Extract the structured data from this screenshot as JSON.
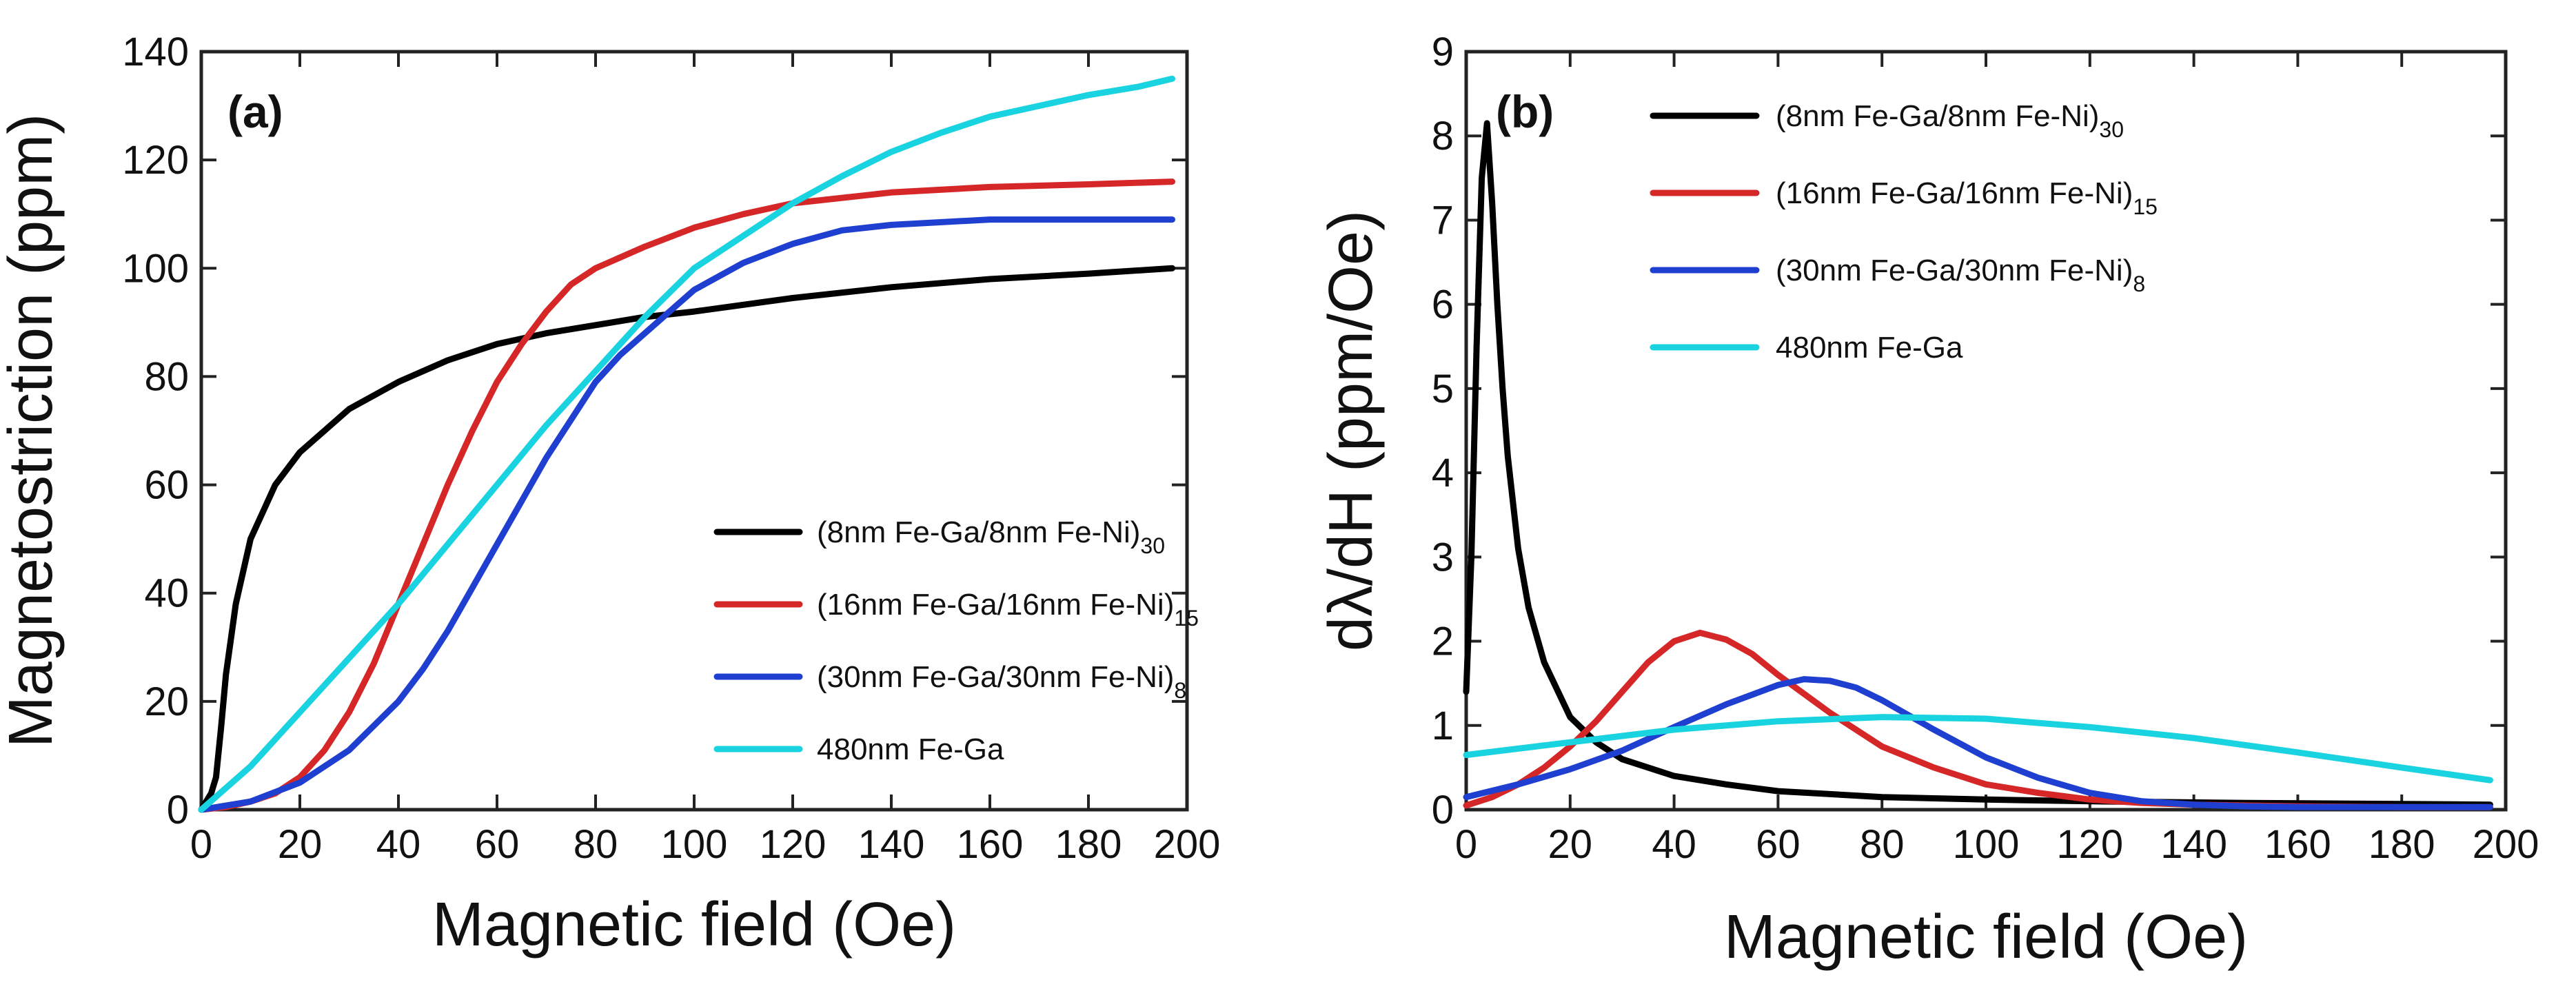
{
  "chart_data": [
    {
      "type": "line",
      "panel_label": "(a)",
      "xlabel": "Magnetic field (Oe)",
      "ylabel": "Magnetostriction (ppm)",
      "xlim": [
        0,
        200
      ],
      "ylim": [
        0,
        140
      ],
      "xticks": [
        "0",
        "20",
        "40",
        "60",
        "80",
        "100",
        "120",
        "140",
        "160",
        "180",
        "200"
      ],
      "yticks": [
        "0",
        "20",
        "40",
        "60",
        "80",
        "100",
        "120",
        "140"
      ],
      "grid": false,
      "legend_position": "lower-right",
      "series": [
        {
          "name": "(8nm Fe-Ga/8nm Fe-Ni)",
          "subscript": "30",
          "color": "#000000",
          "x": [
            0,
            1,
            2,
            3,
            4,
            5,
            7,
            10,
            15,
            20,
            30,
            40,
            50,
            60,
            70,
            80,
            90,
            100,
            120,
            140,
            160,
            180,
            197
          ],
          "y": [
            0,
            1.5,
            3,
            6,
            15,
            25,
            38,
            50,
            60,
            66,
            74,
            79,
            83,
            86,
            88,
            89.5,
            91,
            92,
            94.5,
            96.5,
            98,
            99,
            100
          ]
        },
        {
          "name": "(16nm Fe-Ga/16nm Fe-Ni)",
          "subscript": "15",
          "color": "#d62728",
          "x": [
            0,
            5,
            10,
            15,
            20,
            25,
            30,
            35,
            40,
            45,
            50,
            55,
            60,
            65,
            70,
            75,
            80,
            90,
            100,
            110,
            120,
            140,
            160,
            180,
            197
          ],
          "y": [
            0,
            0.5,
            1.5,
            3,
            6,
            11,
            18,
            27,
            38,
            49,
            60,
            70,
            79,
            86,
            92,
            97,
            100,
            104,
            107.5,
            110,
            112,
            114,
            115,
            115.5,
            116
          ]
        },
        {
          "name": "(30nm Fe-Ga/30nm Fe-Ni)",
          "subscript": "8",
          "color": "#1f3fd0",
          "x": [
            0,
            10,
            20,
            30,
            40,
            45,
            50,
            55,
            60,
            65,
            70,
            75,
            80,
            85,
            90,
            95,
            100,
            110,
            120,
            130,
            140,
            160,
            180,
            197
          ],
          "y": [
            0,
            1.5,
            5,
            11,
            20,
            26,
            33,
            41,
            49,
            57,
            65,
            72,
            79,
            84,
            88,
            92,
            96,
            101,
            104.5,
            107,
            108,
            109,
            109,
            109
          ]
        },
        {
          "name": "480nm Fe-Ga",
          "subscript": "",
          "color": "#19d3e0",
          "x": [
            0,
            10,
            20,
            30,
            40,
            50,
            60,
            70,
            80,
            90,
            100,
            110,
            120,
            130,
            140,
            150,
            160,
            170,
            180,
            190,
            197
          ],
          "y": [
            0,
            8,
            18,
            28,
            38,
            49,
            60,
            71,
            81,
            91,
            100,
            106,
            112,
            117,
            121.5,
            125,
            128,
            130,
            132,
            133.5,
            135
          ]
        }
      ]
    },
    {
      "type": "line",
      "panel_label": "(b)",
      "xlabel": "Magnetic field (Oe)",
      "ylabel": "dλ/dH (ppm/Oe)",
      "xlim": [
        0,
        200
      ],
      "ylim": [
        0,
        9
      ],
      "xticks": [
        "0",
        "20",
        "40",
        "60",
        "80",
        "100",
        "120",
        "140",
        "160",
        "180",
        "200"
      ],
      "yticks": [
        "0",
        "1",
        "2",
        "3",
        "4",
        "5",
        "6",
        "7",
        "8",
        "9"
      ],
      "grid": false,
      "legend_position": "upper-left",
      "series": [
        {
          "name": "(8nm Fe-Ga/8nm Fe-Ni)",
          "subscript": "30",
          "color": "#000000",
          "x": [
            0,
            1,
            2,
            3,
            4,
            5,
            6,
            7,
            8,
            10,
            12,
            15,
            20,
            25,
            30,
            40,
            50,
            60,
            80,
            100,
            120,
            150,
            197
          ],
          "y": [
            1.4,
            3,
            5.5,
            7.5,
            8.15,
            7.2,
            6,
            5,
            4.2,
            3.1,
            2.4,
            1.75,
            1.1,
            0.8,
            0.6,
            0.4,
            0.3,
            0.22,
            0.15,
            0.12,
            0.1,
            0.08,
            0.06
          ]
        },
        {
          "name": "(16nm Fe-Ga/16nm Fe-Ni)",
          "subscript": "15",
          "color": "#d62728",
          "x": [
            0,
            5,
            10,
            15,
            20,
            25,
            30,
            35,
            40,
            45,
            50,
            55,
            60,
            70,
            80,
            90,
            100,
            110,
            120,
            130,
            140,
            160,
            180,
            197
          ],
          "y": [
            0.05,
            0.15,
            0.3,
            0.5,
            0.75,
            1.05,
            1.4,
            1.75,
            2.0,
            2.1,
            2.02,
            1.85,
            1.6,
            1.15,
            0.75,
            0.5,
            0.3,
            0.2,
            0.12,
            0.08,
            0.06,
            0.04,
            0.03,
            0.03
          ]
        },
        {
          "name": "(30nm Fe-Ga/30nm Fe-Ni)",
          "subscript": "8",
          "color": "#1f3fd0",
          "x": [
            0,
            10,
            20,
            30,
            40,
            50,
            60,
            65,
            70,
            75,
            80,
            90,
            100,
            110,
            120,
            130,
            140,
            150,
            160,
            180,
            197
          ],
          "y": [
            0.15,
            0.3,
            0.48,
            0.7,
            0.98,
            1.25,
            1.48,
            1.55,
            1.53,
            1.45,
            1.3,
            0.95,
            0.62,
            0.38,
            0.2,
            0.1,
            0.06,
            0.04,
            0.03,
            0.03,
            0.03
          ]
        },
        {
          "name": "480nm Fe-Ga",
          "subscript": "",
          "color": "#19d3e0",
          "x": [
            0,
            20,
            40,
            60,
            80,
            100,
            120,
            140,
            160,
            180,
            197
          ],
          "y": [
            0.65,
            0.8,
            0.95,
            1.05,
            1.1,
            1.08,
            0.98,
            0.85,
            0.68,
            0.5,
            0.35
          ]
        }
      ]
    }
  ]
}
